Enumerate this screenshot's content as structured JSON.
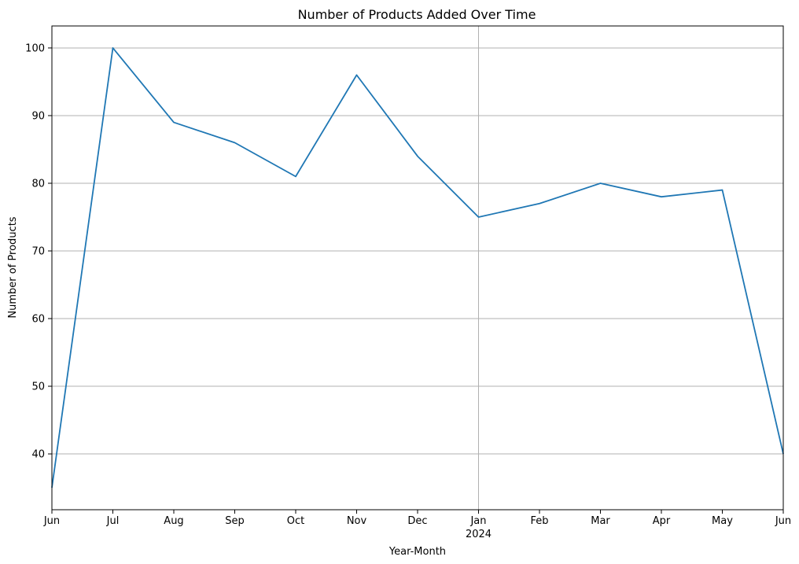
{
  "chart_data": {
    "type": "line",
    "title": "Number of Products Added Over Time",
    "xlabel": "Year-Month",
    "ylabel": "Number of Products",
    "x": [
      "2023-06",
      "2023-07",
      "2023-08",
      "2023-09",
      "2023-10",
      "2023-11",
      "2023-12",
      "2024-01",
      "2024-02",
      "2024-03",
      "2024-04",
      "2024-05",
      "2024-06"
    ],
    "x_tick_labels": [
      "Jun",
      "Jul",
      "Aug",
      "Sep",
      "Oct",
      "Nov",
      "Dec",
      "Jan",
      "Feb",
      "Mar",
      "Apr",
      "May",
      "Jun"
    ],
    "x_year_label": {
      "text": "2024",
      "at": "2024-01"
    },
    "series": [
      {
        "values": [
          35,
          100,
          89,
          86,
          81,
          96,
          84,
          75,
          77,
          80,
          78,
          79,
          40
        ],
        "color": "#1f77b4"
      }
    ],
    "y_ticks": [
      40,
      50,
      60,
      70,
      80,
      90,
      100
    ],
    "ylim": [
      31.75,
      103.25
    ],
    "xlim": [
      "2023-06",
      "2024-06"
    ],
    "grid": true,
    "legend": "none"
  }
}
